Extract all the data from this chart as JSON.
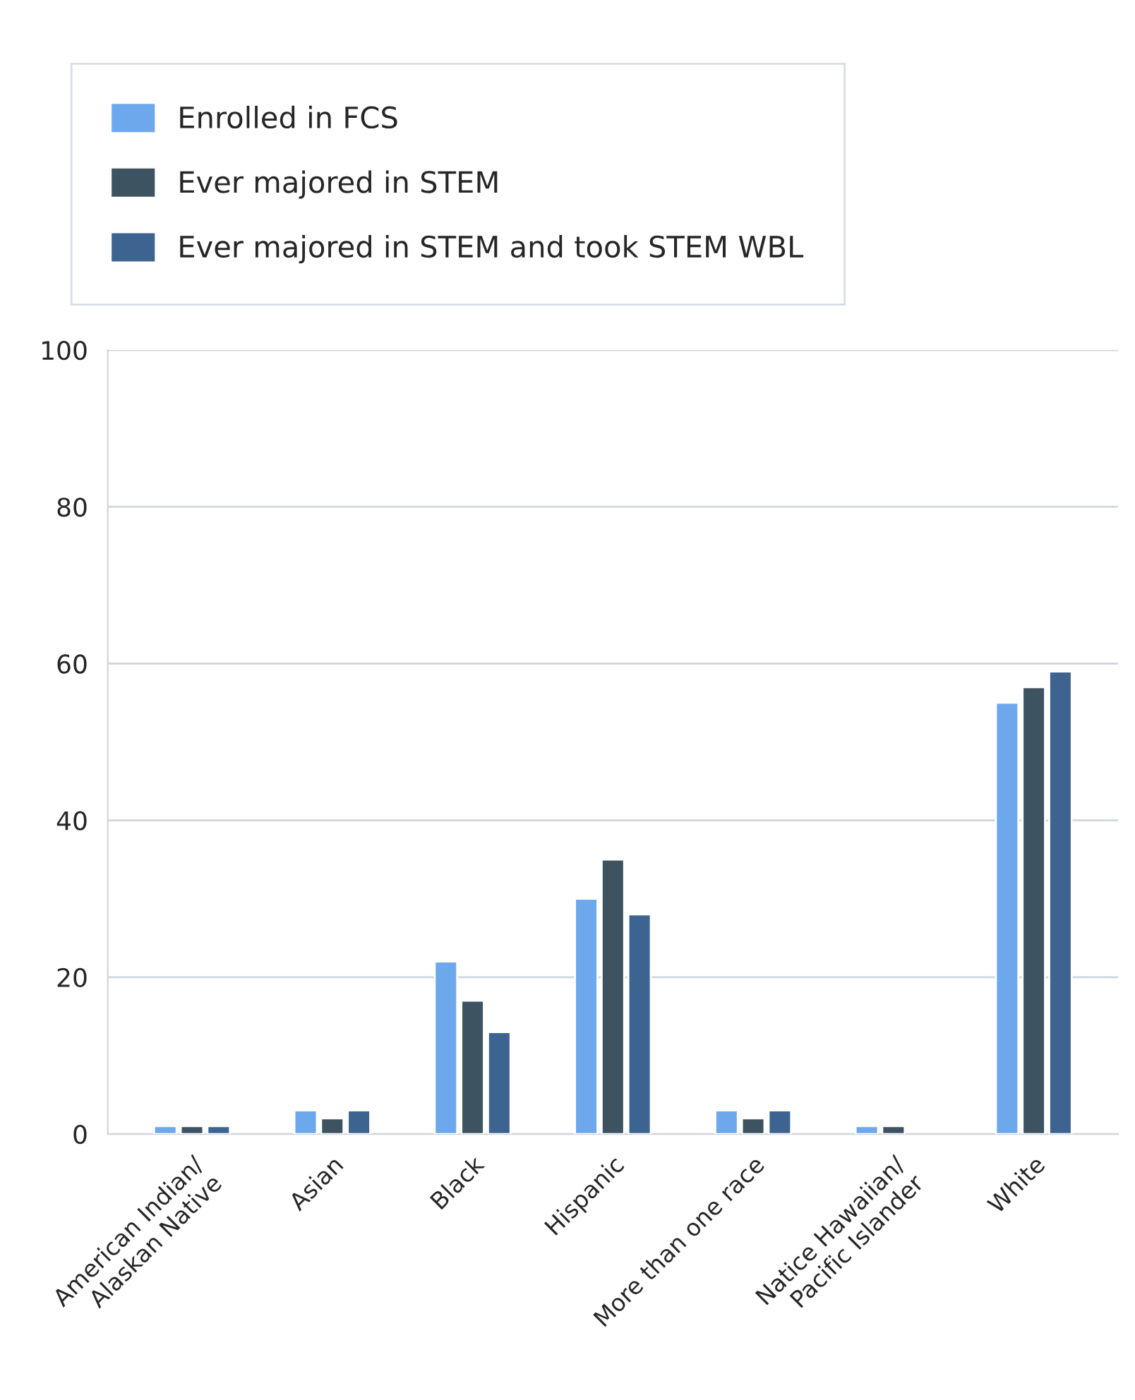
{
  "chart_data": {
    "type": "bar",
    "categories": [
      "American Indian/\nAlaskan Native",
      "Asian",
      "Black",
      "Hispanic",
      "More than one race",
      "Natice Hawaiian/\nPacific Islander",
      "White"
    ],
    "series": [
      {
        "name": "Enrolled in FCS",
        "color": "#6ea8ec",
        "values": [
          1,
          3,
          22,
          30,
          3,
          1,
          55
        ]
      },
      {
        "name": "Ever majored in STEM",
        "color": "#3e5361",
        "values": [
          1,
          2,
          17,
          35,
          2,
          1,
          57
        ]
      },
      {
        "name": "Ever majored in STEM and took STEM WBL",
        "color": "#3d6490",
        "values": [
          1,
          3,
          13,
          28,
          3,
          null,
          59
        ]
      }
    ],
    "ylim": [
      0,
      100
    ],
    "yticks": [
      0,
      20,
      40,
      60,
      80,
      100
    ],
    "grid": "y",
    "legend": "top"
  }
}
